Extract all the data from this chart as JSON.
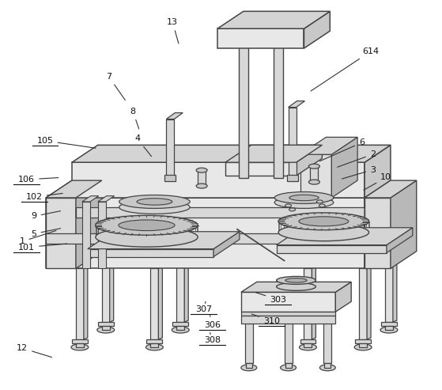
{
  "bg_color": "#ffffff",
  "lc": "#444444",
  "figsize": [
    5.59,
    4.93
  ],
  "dpi": 100,
  "label_data": {
    "1": [
      0.048,
      0.62,
      0.13,
      0.59
    ],
    "2": [
      0.845,
      0.395,
      0.76,
      0.43
    ],
    "3": [
      0.845,
      0.435,
      0.77,
      0.46
    ],
    "4": [
      0.31,
      0.355,
      0.345,
      0.405
    ],
    "5": [
      0.075,
      0.6,
      0.14,
      0.585
    ],
    "6": [
      0.82,
      0.365,
      0.72,
      0.415
    ],
    "7": [
      0.245,
      0.195,
      0.285,
      0.26
    ],
    "8": [
      0.3,
      0.285,
      0.315,
      0.335
    ],
    "9": [
      0.075,
      0.555,
      0.14,
      0.54
    ],
    "10": [
      0.875,
      0.455,
      0.82,
      0.49
    ],
    "12": [
      0.048,
      0.895,
      0.12,
      0.92
    ],
    "13": [
      0.39,
      0.055,
      0.405,
      0.115
    ],
    "101": [
      0.058,
      0.635,
      0.155,
      0.625
    ],
    "102": [
      0.075,
      0.505,
      0.145,
      0.495
    ],
    "105": [
      0.1,
      0.36,
      0.22,
      0.38
    ],
    "106": [
      0.058,
      0.46,
      0.135,
      0.455
    ],
    "303": [
      0.63,
      0.77,
      0.575,
      0.75
    ],
    "306": [
      0.48,
      0.835,
      0.475,
      0.81
    ],
    "307": [
      0.46,
      0.795,
      0.465,
      0.775
    ],
    "308": [
      0.48,
      0.875,
      0.475,
      0.855
    ],
    "310": [
      0.615,
      0.825,
      0.565,
      0.805
    ],
    "614": [
      0.84,
      0.13,
      0.7,
      0.235
    ]
  },
  "underlined": [
    "105",
    "106",
    "102",
    "101",
    "307",
    "306",
    "308",
    "303",
    "310"
  ]
}
